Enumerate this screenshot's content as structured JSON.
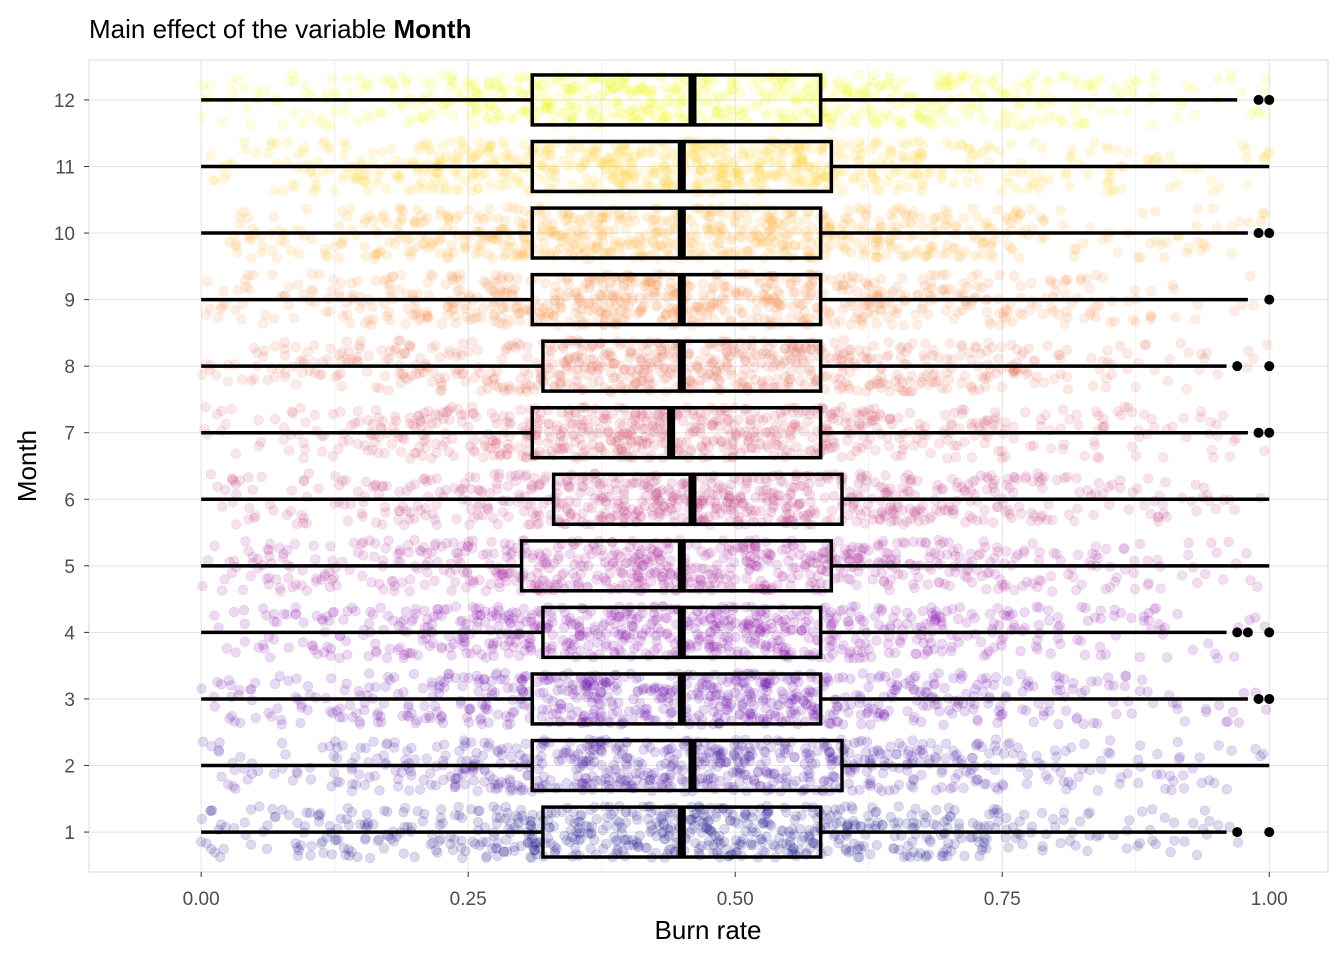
{
  "chart_data": {
    "type": "boxplot",
    "title": {
      "prefix": "Main effect of the variable ",
      "bold": "Month"
    },
    "xlabel": "Burn rate",
    "ylabel": "Month",
    "xlim": [
      -0.105,
      1.055
    ],
    "ylim": [
      0.4,
      12.6
    ],
    "x_ticks": [
      0,
      0.25,
      0.5,
      0.75,
      1.0
    ],
    "x_tick_labels": [
      "0.00",
      "0.25",
      "0.50",
      "0.75",
      "1.00"
    ],
    "y_ticks": [
      1,
      2,
      3,
      4,
      5,
      6,
      7,
      8,
      9,
      10,
      11,
      12
    ],
    "y_tick_labels": [
      "1",
      "2",
      "3",
      "4",
      "5",
      "6",
      "7",
      "8",
      "9",
      "10",
      "11",
      "12"
    ],
    "grid": true,
    "jitter_points": true,
    "jitter_alpha": 0.15,
    "palette": [
      "#0D0887",
      "#3E049C",
      "#6300A7",
      "#8707A6",
      "#A62098",
      "#C03A83",
      "#D5546E",
      "#E76F5A",
      "#F58C46",
      "#FDAD32",
      "#FCD225",
      "#F0F921"
    ],
    "series": [
      {
        "month": 1,
        "whisker_low": 0.0,
        "q1": 0.32,
        "median": 0.45,
        "q3": 0.58,
        "whisker_high": 0.96,
        "outliers": [
          0.97,
          1.0
        ]
      },
      {
        "month": 2,
        "whisker_low": 0.0,
        "q1": 0.31,
        "median": 0.46,
        "q3": 0.6,
        "whisker_high": 1.0,
        "outliers": []
      },
      {
        "month": 3,
        "whisker_low": 0.0,
        "q1": 0.31,
        "median": 0.45,
        "q3": 0.58,
        "whisker_high": 0.98,
        "outliers": [
          0.99,
          1.0
        ]
      },
      {
        "month": 4,
        "whisker_low": 0.0,
        "q1": 0.32,
        "median": 0.45,
        "q3": 0.58,
        "whisker_high": 0.96,
        "outliers": [
          0.97,
          0.98,
          1.0
        ]
      },
      {
        "month": 5,
        "whisker_low": 0.0,
        "q1": 0.3,
        "median": 0.45,
        "q3": 0.59,
        "whisker_high": 1.0,
        "outliers": []
      },
      {
        "month": 6,
        "whisker_low": 0.0,
        "q1": 0.33,
        "median": 0.46,
        "q3": 0.6,
        "whisker_high": 1.0,
        "outliers": []
      },
      {
        "month": 7,
        "whisker_low": 0.0,
        "q1": 0.31,
        "median": 0.44,
        "q3": 0.58,
        "whisker_high": 0.98,
        "outliers": [
          0.99,
          1.0
        ]
      },
      {
        "month": 8,
        "whisker_low": 0.0,
        "q1": 0.32,
        "median": 0.45,
        "q3": 0.58,
        "whisker_high": 0.96,
        "outliers": [
          0.97,
          1.0
        ]
      },
      {
        "month": 9,
        "whisker_low": 0.0,
        "q1": 0.31,
        "median": 0.45,
        "q3": 0.58,
        "whisker_high": 0.98,
        "outliers": [
          1.0
        ]
      },
      {
        "month": 10,
        "whisker_low": 0.0,
        "q1": 0.31,
        "median": 0.45,
        "q3": 0.58,
        "whisker_high": 0.98,
        "outliers": [
          0.99,
          1.0
        ]
      },
      {
        "month": 11,
        "whisker_low": 0.0,
        "q1": 0.31,
        "median": 0.45,
        "q3": 0.59,
        "whisker_high": 1.0,
        "outliers": []
      },
      {
        "month": 12,
        "whisker_low": 0.0,
        "q1": 0.31,
        "median": 0.46,
        "q3": 0.58,
        "whisker_high": 0.97,
        "outliers": [
          0.99,
          1.0
        ]
      }
    ]
  }
}
